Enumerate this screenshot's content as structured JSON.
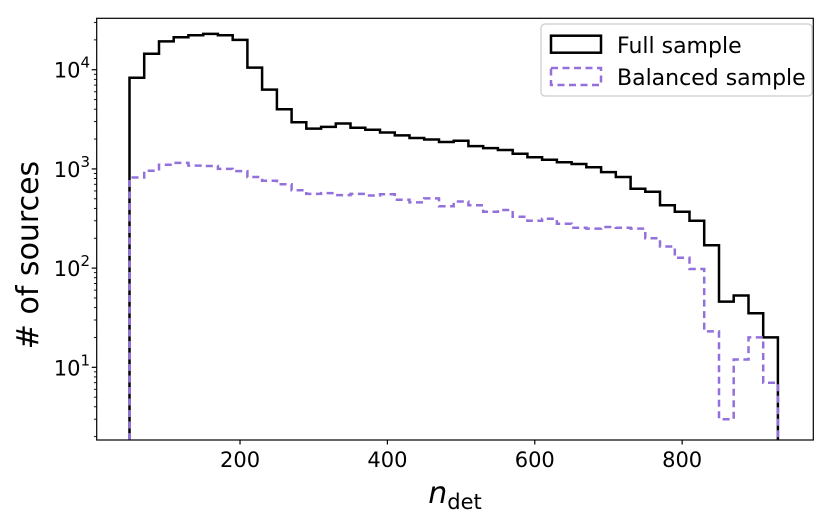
{
  "figure": {
    "background": "#ffffff"
  },
  "chart_data": {
    "type": "histogram-step",
    "title": "",
    "xlabel_main": "n",
    "xlabel_sub": "det",
    "ylabel": "# of sources",
    "yscale": "log",
    "grid": false,
    "xlim": [
      5.5,
      978
    ],
    "ylim": [
      1.85,
      33000
    ],
    "x_ticks": [
      200,
      400,
      600,
      800
    ],
    "y_tick_exponents": [
      1,
      2,
      3,
      4
    ],
    "bin_edges": [
      50,
      70,
      90,
      110,
      130,
      150,
      170,
      190,
      210,
      230,
      250,
      270,
      290,
      310,
      330,
      350,
      370,
      390,
      410,
      430,
      450,
      470,
      490,
      510,
      530,
      550,
      570,
      590,
      610,
      630,
      650,
      670,
      690,
      710,
      730,
      750,
      770,
      790,
      810,
      830,
      850,
      870,
      890,
      910,
      930
    ],
    "series": [
      {
        "name": "Full sample",
        "color": "#000000",
        "linestyle": "solid",
        "linewidth": 2.5,
        "counts": [
          8300,
          14500,
          19300,
          21300,
          22300,
          23000,
          22300,
          20000,
          10500,
          6300,
          4000,
          2950,
          2550,
          2650,
          2870,
          2600,
          2480,
          2330,
          2180,
          2050,
          1980,
          1870,
          1920,
          1700,
          1620,
          1550,
          1420,
          1310,
          1240,
          1170,
          1120,
          1040,
          930,
          830,
          630,
          590,
          430,
          370,
          300,
          170,
          46,
          53,
          35,
          20
        ]
      },
      {
        "name": "Balanced sample",
        "color": "#9370DB",
        "linestyle": "dashed",
        "linewidth": 2.5,
        "counts": [
          820,
          960,
          1100,
          1150,
          1080,
          1070,
          1000,
          950,
          830,
          760,
          700,
          610,
          560,
          570,
          545,
          560,
          540,
          555,
          490,
          460,
          505,
          420,
          470,
          430,
          370,
          385,
          330,
          300,
          315,
          280,
          255,
          250,
          260,
          255,
          250,
          200,
          165,
          127,
          98,
          23,
          3,
          12,
          20,
          7
        ]
      }
    ],
    "legend": {
      "position": "upper-right",
      "border_color": "#cccccc",
      "background": "#ffffff",
      "entries": [
        {
          "label": "Full sample",
          "color": "#000000",
          "linestyle": "solid"
        },
        {
          "label": "Balanced sample",
          "color": "#9370DB",
          "linestyle": "dashed"
        }
      ]
    }
  }
}
